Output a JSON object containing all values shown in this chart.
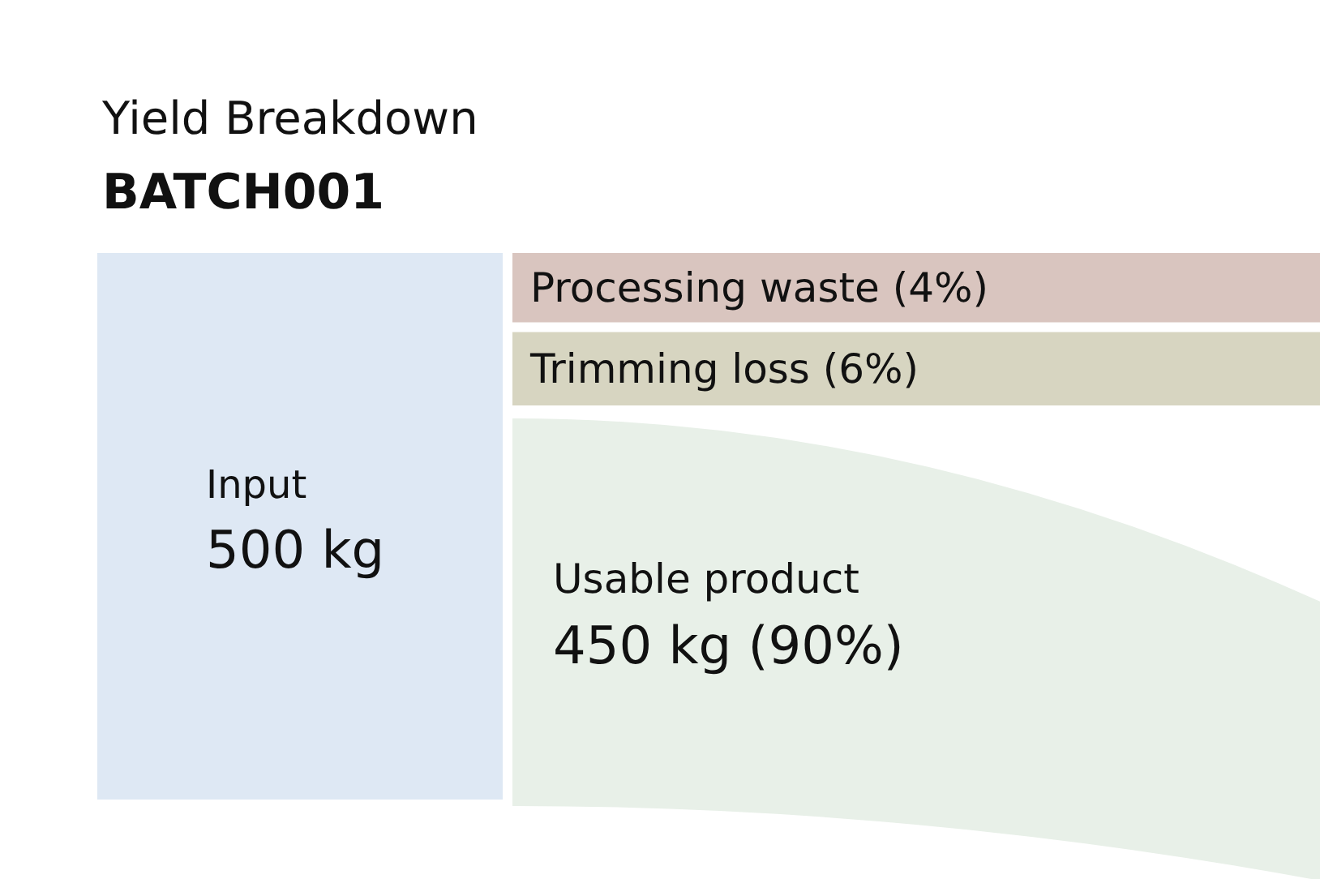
{
  "chart_data": {
    "type": "other",
    "title": "Yield Breakdown",
    "subtitle": "BATCH001",
    "categories": [
      "Input",
      "Processing waste",
      "Trimming loss",
      "Usable product"
    ],
    "values": [
      500,
      4,
      6,
      450
    ],
    "value_labels": [
      "500 kg",
      "(4%)",
      "(6%)",
      "450 kg (90%)"
    ],
    "colors": [
      "#dee8f4",
      "#d9c5bf",
      "#d7d5c1",
      "#e8f0e8"
    ]
  }
}
